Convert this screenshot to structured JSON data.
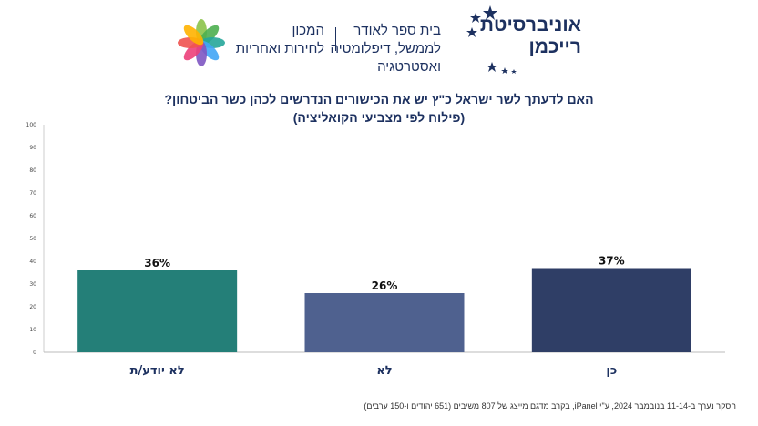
{
  "header": {
    "university_name_line1": "אוניברסיטת",
    "university_name_line2": "רייכמן",
    "school_line1": "בית ספר לאודר",
    "school_line2": "לממשל, דיפלומטיה",
    "school_line3": "ואסטרטגיה",
    "institute_line1": "המכון",
    "institute_line2": "לחירות ואחריות"
  },
  "chart_data": {
    "type": "bar",
    "title": "האם לדעתך לשר ישראל כ\"ץ יש את הכישורים הנדרשים לכהן כשר הביטחון?",
    "subtitle": "(פילוח לפי מצביעי הקואליציה)",
    "categories": [
      "לא יודע/ת",
      "לא",
      "כן"
    ],
    "values": [
      36,
      26,
      37
    ],
    "value_labels": [
      "36%",
      "26%",
      "37%"
    ],
    "colors": [
      "#247f78",
      "#4f618f",
      "#2f3e66"
    ],
    "ylim": [
      0,
      100
    ],
    "yticks": [
      0,
      10,
      20,
      30,
      40,
      50,
      60,
      70,
      80,
      90,
      100
    ],
    "grid": false,
    "legend": "none"
  },
  "footnote": "הסקר נערך ב-11-14 בנובמבר 2024, ע\"י iPanel, בקרב מדגם מייצג של 807 משיבים (651 יהודים ו-150 ערבים)"
}
